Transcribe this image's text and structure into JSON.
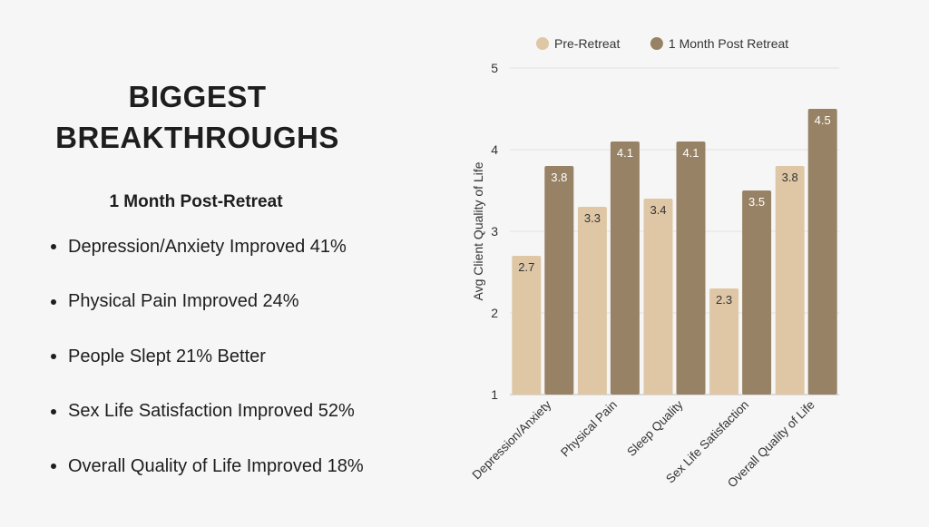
{
  "slide": {
    "title_line1": "BIGGEST",
    "title_line2": "BREAKTHROUGHS",
    "subtitle": "1 Month Post-Retreat",
    "bullets": [
      "Depression/Anxiety Improved 41%",
      "Physical Pain Improved 24%",
      "People Slept 21% Better",
      "Sex Life Satisfaction Improved 52%",
      "Overall Quality of Life Improved 18%"
    ]
  },
  "chart_data": {
    "type": "bar",
    "categories": [
      "Depression/Anxiety",
      "Physical Pain",
      "Sleep Quality",
      "Sex Life Satisfaction",
      "Overall Quality of Life"
    ],
    "series": [
      {
        "name": "Pre-Retreat",
        "values": [
          2.7,
          3.3,
          3.4,
          2.3,
          3.8
        ],
        "color": "#dfc7a6",
        "label_color": "#333333"
      },
      {
        "name": "1 Month Post Retreat",
        "values": [
          3.8,
          4.1,
          4.1,
          3.5,
          4.5
        ],
        "color": "#988265",
        "label_color": "#ffffff"
      }
    ],
    "ylabel": "Avg Client Quality of Life",
    "xlabel": "",
    "ylim": [
      1,
      5
    ],
    "yticks": [
      1,
      2,
      3,
      4,
      5
    ],
    "grid": true,
    "legend_position": "top"
  }
}
